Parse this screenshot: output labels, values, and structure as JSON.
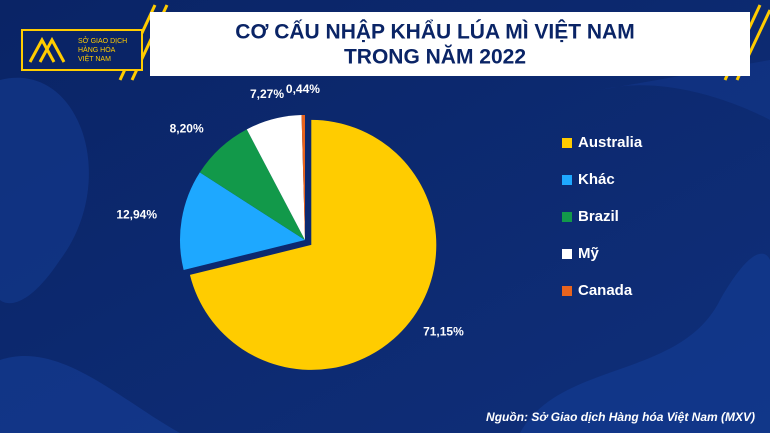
{
  "chart_data": {
    "type": "pie",
    "title": [
      "CƠ CẤU NHẬP KHẨU LÚA MÌ VIỆT NAM",
      "TRONG NĂM 2022"
    ],
    "logo_text": [
      "SỞ GIAO DỊCH",
      "HÀNG HÓA",
      "VIỆT NAM"
    ],
    "categories": [
      "Australia",
      "Khác",
      "Brazil",
      "Mỹ",
      "Canada"
    ],
    "values": [
      71.15,
      12.94,
      8.2,
      7.27,
      0.44
    ],
    "value_labels": [
      "71,15%",
      "12,94%",
      "8,20%",
      "7,27%",
      "0,44%"
    ],
    "colors": [
      "#ffcc00",
      "#1ea8ff",
      "#12994a",
      "#ffffff",
      "#e8641e"
    ],
    "legend": "right",
    "source": "Nguồn: Sở Giao dịch Hàng hóa Việt Nam (MXV)"
  }
}
